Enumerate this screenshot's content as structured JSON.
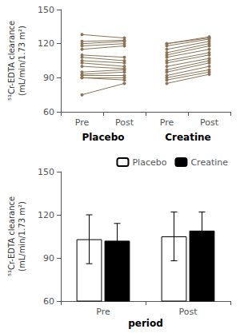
{
  "chart_data": [
    {
      "type": "line",
      "categories": [
        "Pre",
        "Post",
        "Pre",
        "Post"
      ],
      "series": [
        {
          "name": "Placebo",
          "color": "#8b7355",
          "marker": "circle",
          "values": [
            [
              75,
              85
            ],
            [
              90,
              88
            ],
            [
              90,
              90
            ],
            [
              92,
              92
            ],
            [
              93,
              95
            ],
            [
              95,
              97
            ],
            [
              100,
              98
            ],
            [
              103,
              100
            ],
            [
              105,
              103
            ],
            [
              108,
              105
            ],
            [
              110,
              108
            ],
            [
              115,
              118
            ],
            [
              118,
              120
            ],
            [
              120,
              122
            ],
            [
              122,
              123
            ],
            [
              128,
              125
            ]
          ]
        },
        {
          "name": "Creatine",
          "color": "#8b7355",
          "marker": "circle",
          "values": [
            [
              85,
              93
            ],
            [
              88,
              95
            ],
            [
              90,
              97
            ],
            [
              92,
              100
            ],
            [
              95,
              103
            ],
            [
              97,
              105
            ],
            [
              100,
              107
            ],
            [
              103,
              110
            ],
            [
              105,
              112
            ],
            [
              108,
              115
            ],
            [
              110,
              118
            ],
            [
              112,
              120
            ],
            [
              115,
              122
            ],
            [
              118,
              124
            ],
            [
              120,
              125
            ],
            [
              120,
              126
            ]
          ]
        }
      ],
      "ylabel": "⁵¹Cr-EDTA clearance\n(mL/min/1.73 m²)",
      "ylim": [
        60,
        150
      ],
      "yticks": [
        60,
        90,
        120,
        150
      ],
      "grid": false
    },
    {
      "type": "bar",
      "categories": [
        "Pre",
        "Post"
      ],
      "series": [
        {
          "name": "Placebo",
          "color": "#ffffff",
          "values": [
            103,
            105
          ],
          "errors": [
            17,
            17
          ]
        },
        {
          "name": "Creatine",
          "color": "#000000",
          "values": [
            102,
            109
          ],
          "errors": [
            12,
            13
          ]
        }
      ],
      "xlabel": "period",
      "ylabel": "⁵¹Cr-EDTA clearance\n(mL/min/1.73 m²)",
      "ylim": [
        60,
        150
      ],
      "yticks": [
        60,
        90,
        120,
        150
      ],
      "grid": false,
      "legend": "upper right"
    }
  ]
}
